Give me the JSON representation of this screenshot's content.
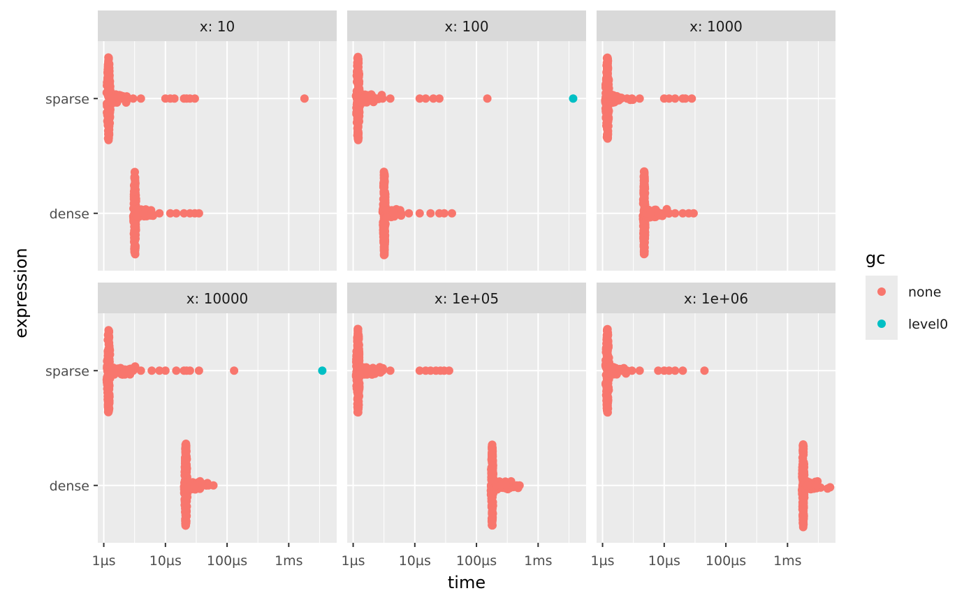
{
  "chart_data": {
    "type": "scatter",
    "xlabel": "time",
    "ylabel": "expression",
    "x_scale": "log10",
    "xlim": [
      "0.8µs",
      "6ms"
    ],
    "x_ticks": [
      "1µs",
      "10µs",
      "100µs",
      "1ms"
    ],
    "y_categories": [
      "sparse",
      "dense"
    ],
    "legend": {
      "title": "gc",
      "position": "right",
      "entries": [
        {
          "label": "none",
          "color": "#F8766D"
        },
        {
          "label": "level0",
          "color": "#00BFC4"
        }
      ]
    },
    "grid": true,
    "panels": [
      {
        "label": "x: 10",
        "series": [
          {
            "expression": "sparse",
            "gc": "none",
            "bulk": [
              "1.1µs",
              "1.3µs"
            ],
            "points": [
              "2.0µs",
              "2.4µs",
              "3.0µs",
              "4.0µs",
              "10µs",
              "12µs",
              "14µs",
              "20µs",
              "22µs",
              "25µs",
              "30µs",
              "1.8ms"
            ]
          },
          {
            "expression": "dense",
            "gc": "none",
            "bulk": [
              "3.0µs",
              "3.4µs"
            ],
            "points": [
              "4.5µs",
              "6.0µs",
              "8.0µs",
              "12µs",
              "15µs",
              "20µs",
              "25µs",
              "30µs",
              "35µs"
            ]
          }
        ]
      },
      {
        "label": "x: 100",
        "series": [
          {
            "expression": "sparse",
            "gc": "none",
            "bulk": [
              "1.1µs",
              "1.3µs"
            ],
            "points": [
              "2.0µs",
              "2.5µs",
              "3.0µs",
              "4.0µs",
              "12µs",
              "15µs",
              "20µs",
              "25µs",
              "150µs"
            ]
          },
          {
            "expression": "sparse",
            "gc": "level0",
            "points": [
              "3.7ms"
            ]
          },
          {
            "expression": "dense",
            "gc": "none",
            "bulk": [
              "3.0µs",
              "3.4µs"
            ],
            "points": [
              "4.5µs",
              "6.0µs",
              "8.0µs",
              "12µs",
              "18µs",
              "25µs",
              "30µs",
              "40µs"
            ]
          }
        ]
      },
      {
        "label": "x: 1000",
        "series": [
          {
            "expression": "sparse",
            "gc": "none",
            "bulk": [
              "1.1µs",
              "1.3µs"
            ],
            "points": [
              "2.0µs",
              "2.5µs",
              "3.0µs",
              "4.0µs",
              "10µs",
              "12µs",
              "15µs",
              "20µs",
              "22µs",
              "28µs"
            ]
          },
          {
            "expression": "dense",
            "gc": "none",
            "bulk": [
              "4.5µs",
              "5.0µs"
            ],
            "points": [
              "6.0µs",
              "8.0µs",
              "12µs",
              "15µs",
              "20µs",
              "25µs",
              "30µs"
            ]
          }
        ]
      },
      {
        "label": "x: 10000",
        "series": [
          {
            "expression": "sparse",
            "gc": "none",
            "bulk": [
              "1.1µs",
              "1.3µs"
            ],
            "points": [
              "2.3µs",
              "2.6µs",
              "3.0µs",
              "4.0µs",
              "6.0µs",
              "8.0µs",
              "10µs",
              "15µs",
              "20µs",
              "22µs",
              "25µs",
              "35µs",
              "130µs"
            ]
          },
          {
            "expression": "sparse",
            "gc": "level0",
            "points": [
              "3.5ms"
            ]
          },
          {
            "expression": "dense",
            "gc": "none",
            "bulk": [
              "20µs",
              "23µs"
            ],
            "points": [
              "30µs",
              "40µs",
              "50µs",
              "60µs"
            ]
          }
        ]
      },
      {
        "label": "x: 1e+05",
        "series": [
          {
            "expression": "sparse",
            "gc": "none",
            "bulk": [
              "1.1µs",
              "1.3µs"
            ],
            "points": [
              "2.0µs",
              "2.5µs",
              "3.0µs",
              "4.0µs",
              "12µs",
              "15µs",
              "18µs",
              "22µs",
              "26µs",
              "30µs",
              "36µs"
            ]
          },
          {
            "expression": "dense",
            "gc": "none",
            "bulk": [
              "170µs",
              "190µs"
            ],
            "points": [
              "210µs",
              "250µs",
              "300µs",
              "450µs",
              "500µs"
            ]
          }
        ]
      },
      {
        "label": "x: 1e+06",
        "series": [
          {
            "expression": "sparse",
            "gc": "none",
            "bulk": [
              "1.1µs",
              "1.3µs"
            ],
            "points": [
              "2.0µs",
              "2.5µs",
              "3.0µs",
              "4.0µs",
              "8.0µs",
              "10µs",
              "12µs",
              "15µs",
              "20µs",
              "45µs"
            ]
          },
          {
            "expression": "dense",
            "gc": "none",
            "bulk": [
              "1.7ms",
              "1.9ms"
            ],
            "points": [
              "2.1ms",
              "2.4ms",
              "2.8ms",
              "3.0ms"
            ]
          }
        ]
      }
    ]
  }
}
